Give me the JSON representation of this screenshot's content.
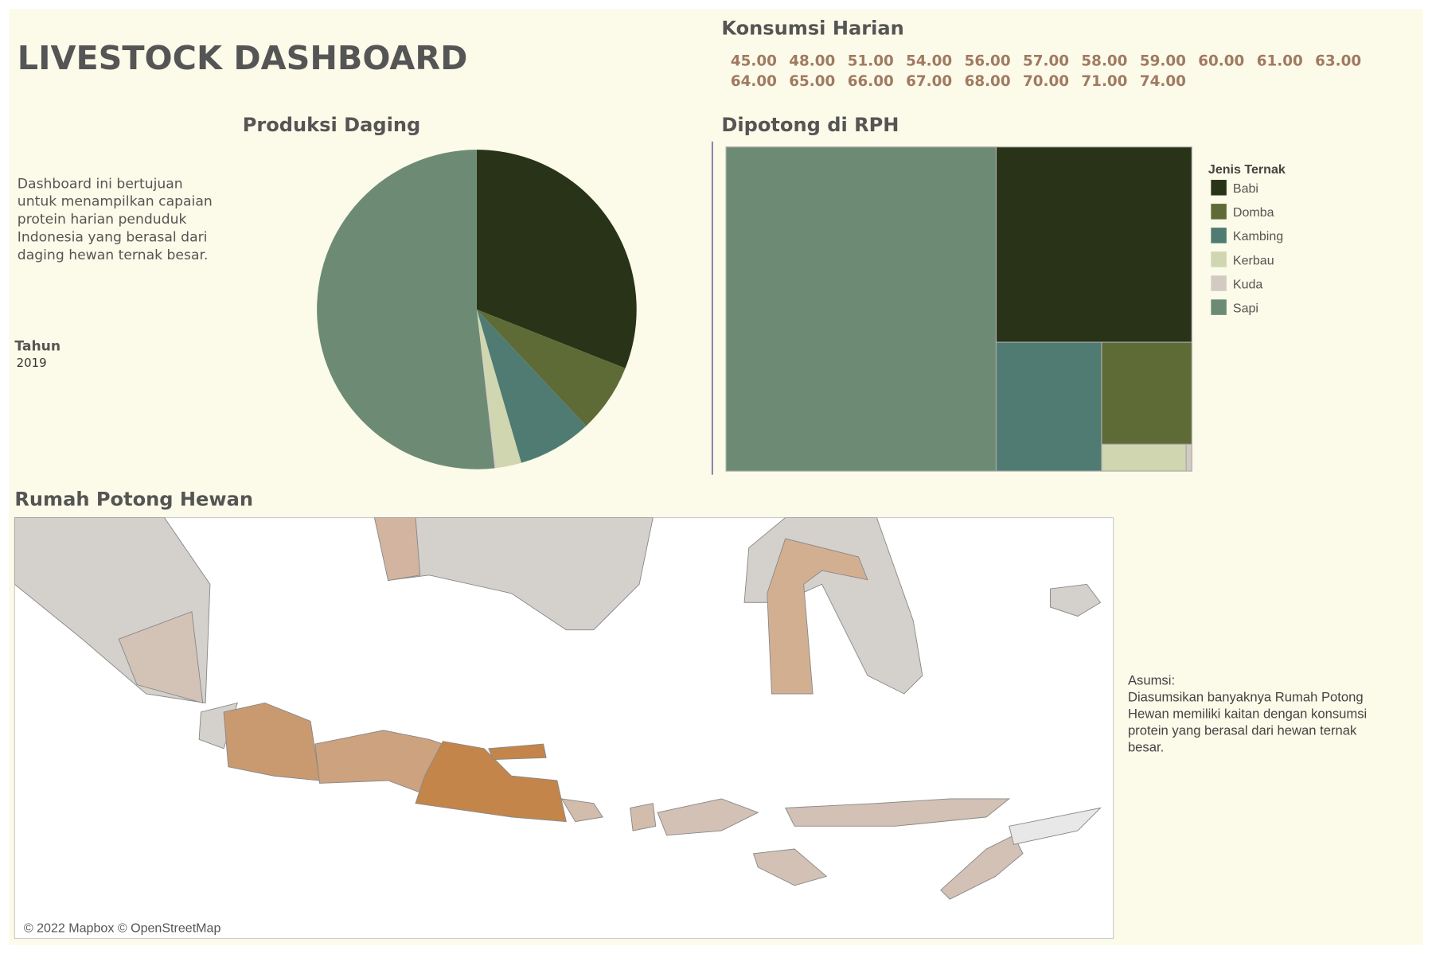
{
  "header": {
    "title": "LIVESTOCK DASHBOARD",
    "description": [
      "Dashboard ini bertujuan",
      "untuk menampilkan capaian",
      "protein harian penduduk",
      "Indonesia yang berasal dari",
      "daging hewan ternak besar."
    ]
  },
  "filter": {
    "label": "Tahun",
    "value": "2019"
  },
  "konsumsi_harian": {
    "title": "Konsumsi Harian",
    "values": [
      "45.00",
      "48.00",
      "51.00",
      "54.00",
      "56.00",
      "57.00",
      "58.00",
      "59.00",
      "60.00",
      "61.00",
      "63.00",
      "64.00",
      "65.00",
      "66.00",
      "67.00",
      "68.00",
      "70.00",
      "71.00",
      "74.00"
    ]
  },
  "chart_data": [
    {
      "type": "pie",
      "title": "Produksi Daging",
      "categories": [
        "Babi",
        "Domba",
        "Kambing",
        "Kerbau",
        "Kuda",
        "Sapi"
      ],
      "values": [
        31,
        7,
        7.5,
        2.5,
        0.2,
        51.8
      ],
      "colors": [
        "#283318",
        "#5e6b36",
        "#4f7b73",
        "#cfd6b0",
        "#d3cbc3",
        "#6d8b74"
      ]
    },
    {
      "type": "treemap",
      "title": "Dipotong di RPH",
      "legend_title": "Jenis Ternak",
      "categories": [
        "Babi",
        "Domba",
        "Kambing",
        "Kerbau",
        "Kuda",
        "Sapi"
      ],
      "values": [
        25.3,
        6.1,
        9,
        1.5,
        0.1,
        58
      ],
      "colors": [
        "#283318",
        "#5e6b36",
        "#4f7b73",
        "#cfd6b0",
        "#d3cbc3",
        "#6d8b74"
      ]
    }
  ],
  "map": {
    "title": "Rumah Potong Hewan",
    "attribution": "© 2022 Mapbox © OpenStreetMap"
  },
  "asumsi": [
    "Asumsi:",
    "Diasumsikan banyaknya Rumah Potong",
    "Hewan memiliki kaitan dengan konsumsi",
    "protein yang berasal dari hewan ternak",
    "besar."
  ]
}
